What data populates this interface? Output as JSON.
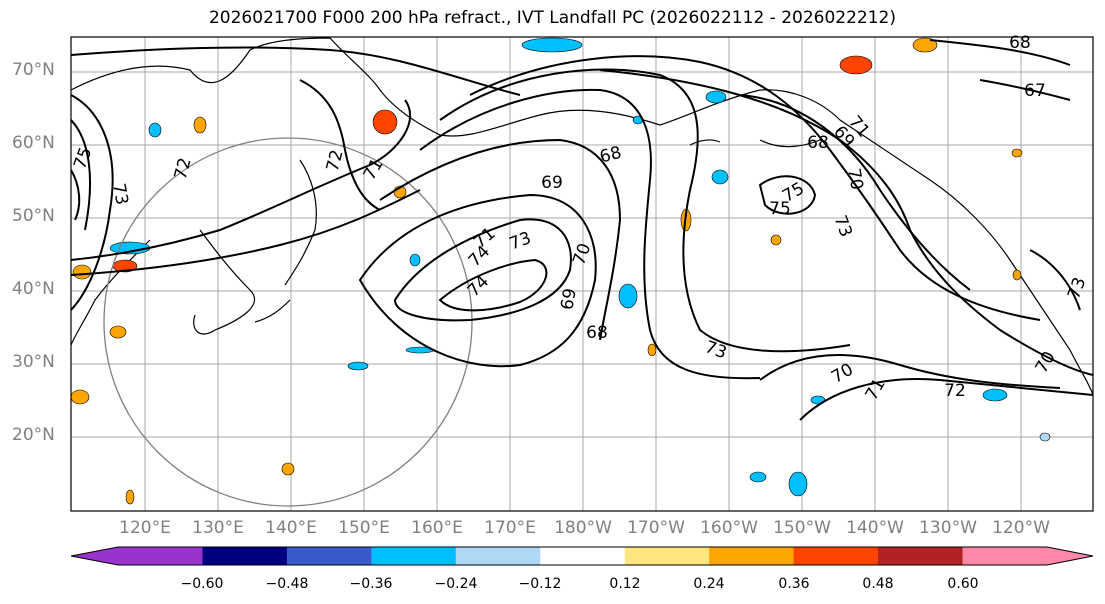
{
  "title": "2026021700 F000 200 hPa refract., IVT Landfall PC (2026022112 - 2026022212)",
  "lat_labels": [
    "70°N",
    "60°N",
    "50°N",
    "40°N",
    "30°N",
    "20°N"
  ],
  "lon_labels": [
    "120°E",
    "130°E",
    "140°E",
    "150°E",
    "160°E",
    "170°E",
    "180°W",
    "170°W",
    "160°W",
    "150°W",
    "140°W",
    "130°W",
    "120°W"
  ],
  "contour_labels": [
    "75",
    "73",
    "72",
    "72",
    "71",
    "71",
    "69",
    "68",
    "70",
    "69",
    "68",
    "73",
    "74",
    "74",
    "71",
    "69",
    "68",
    "75",
    "75",
    "70",
    "68",
    "67",
    "73",
    "70",
    "71",
    "72",
    "73",
    "70",
    "73"
  ],
  "colorbar": {
    "ticks": [
      "−0.60",
      "−0.48",
      "−0.36",
      "−0.24",
      "−0.12",
      "0.12",
      "0.24",
      "0.36",
      "0.48",
      "0.60"
    ],
    "colors": [
      "#9933cc",
      "#000080",
      "#3a5acc",
      "#00bfff",
      "#add8f6",
      "#ffffff",
      "#ffe680",
      "#ffa500",
      "#ff4500",
      "#b22222",
      "#ff88aa"
    ]
  }
}
